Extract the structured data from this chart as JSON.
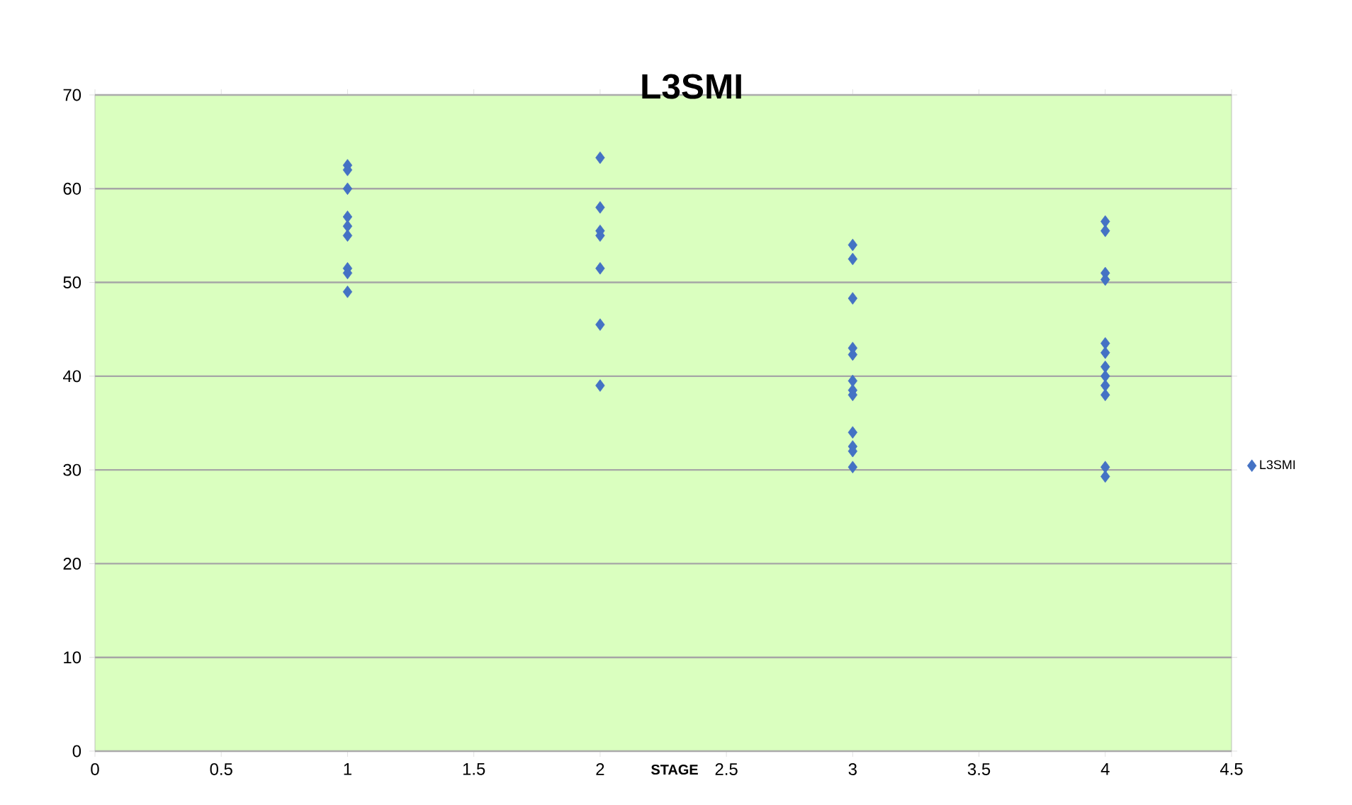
{
  "chart_data": {
    "type": "scatter",
    "title": "L3SMI",
    "xlabel": "STAGE",
    "series": [
      {
        "name": "L3SMI",
        "color": "#4472c4",
        "x": [
          1,
          1,
          1,
          1,
          1,
          1,
          1,
          1,
          1,
          2,
          2,
          2,
          2,
          2,
          2,
          2,
          3,
          3,
          3,
          3,
          3,
          3,
          3,
          3,
          3,
          3,
          3,
          3,
          4,
          4,
          4,
          4,
          4,
          4,
          4,
          4,
          4,
          4,
          4,
          4
        ],
        "values": [
          62.5,
          62,
          60,
          57,
          56,
          55,
          51.5,
          51,
          49,
          63.3,
          58,
          55.5,
          55,
          51.5,
          45.5,
          39,
          54,
          52.5,
          48.3,
          43,
          42.3,
          39.5,
          38.5,
          38,
          34,
          32.5,
          32,
          30.3,
          56.5,
          55.5,
          51,
          50.3,
          43.5,
          42.5,
          41,
          40,
          39,
          38,
          30.3,
          29.3
        ]
      }
    ],
    "xlim": [
      0,
      4.5
    ],
    "ylim": [
      0,
      70
    ],
    "xticks": [
      0,
      0.5,
      1,
      1.5,
      2,
      2.5,
      3,
      3.5,
      4,
      4.5
    ],
    "yticks": [
      0,
      10,
      20,
      30,
      40,
      50,
      60,
      70
    ],
    "grid": "y",
    "legend": "right",
    "marker": "diamond"
  }
}
